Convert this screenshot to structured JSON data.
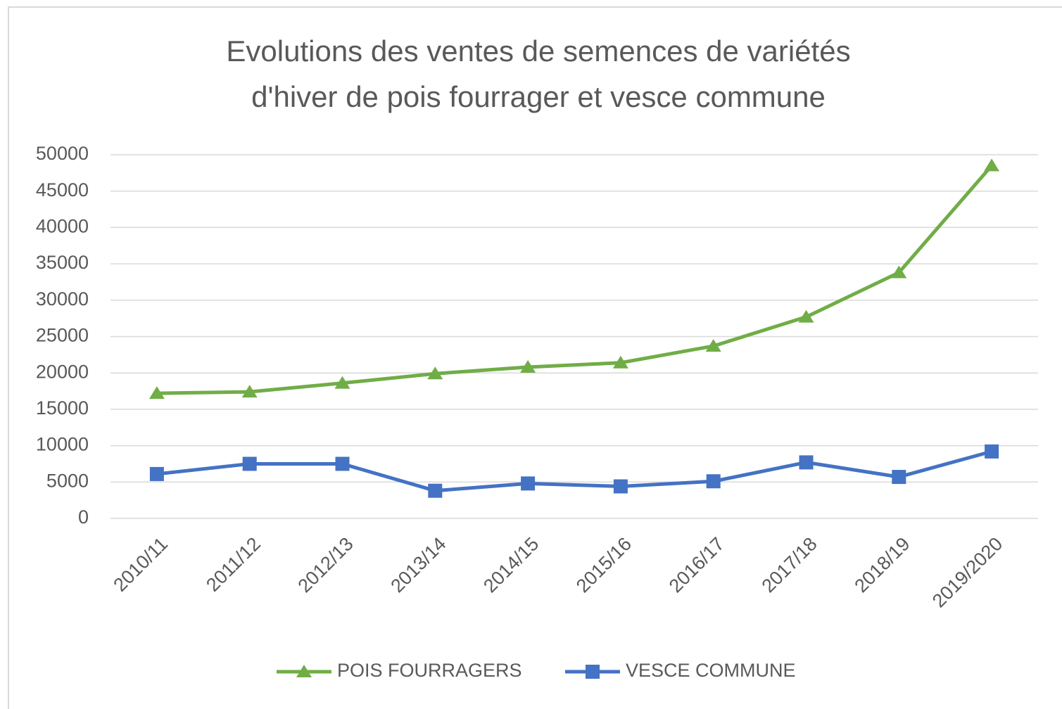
{
  "chart_data": {
    "type": "line",
    "title": [
      "Evolutions des ventes de semences de variétés",
      "d'hiver de pois fourrager et vesce commune"
    ],
    "categories": [
      "2010/11",
      "2011/12",
      "2012/13",
      "2013/14",
      "2014/15",
      "2015/16",
      "2016/17",
      "2017/18",
      "2018/19",
      "2019/2020"
    ],
    "series": [
      {
        "name": "POIS FOURRAGERS",
        "color": "#70ad47",
        "marker": "triangle",
        "values": [
          17200,
          17400,
          18600,
          19900,
          20800,
          21400,
          23700,
          27700,
          33800,
          48500
        ]
      },
      {
        "name": "VESCE COMMUNE",
        "color": "#4472c4",
        "marker": "square",
        "values": [
          6100,
          7500,
          7500,
          3800,
          4800,
          4400,
          5100,
          7700,
          5700,
          9200
        ]
      }
    ],
    "ylim": [
      0,
      50000
    ],
    "yticks": [
      0,
      5000,
      10000,
      15000,
      20000,
      25000,
      30000,
      35000,
      40000,
      45000,
      50000
    ],
    "grid": true,
    "legend": "bottom"
  }
}
